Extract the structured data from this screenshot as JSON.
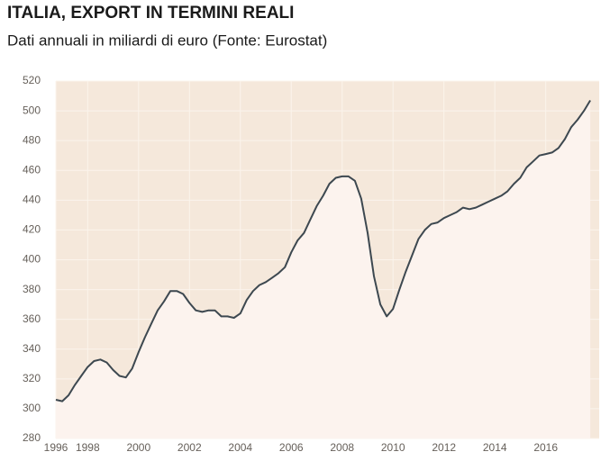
{
  "chart_data": {
    "type": "line",
    "title": "ITALIA, EXPORT IN TERMINI REALI",
    "subtitle": "Dati annuali in miliardi di euro (Fonte: Eurostat)",
    "x": [
      1996.75,
      1997,
      1997.25,
      1997.5,
      1997.75,
      1998,
      1998.25,
      1998.5,
      1998.75,
      1999,
      1999.25,
      1999.5,
      1999.75,
      2000,
      2000.25,
      2000.5,
      2000.75,
      2001,
      2001.25,
      2001.5,
      2001.75,
      2002,
      2002.25,
      2002.5,
      2002.75,
      2003,
      2003.25,
      2003.5,
      2003.75,
      2004,
      2004.25,
      2004.5,
      2004.75,
      2005,
      2005.25,
      2005.5,
      2005.75,
      2006,
      2006.25,
      2006.5,
      2006.75,
      2007,
      2007.25,
      2007.5,
      2007.75,
      2008,
      2008.25,
      2008.5,
      2008.75,
      2009,
      2009.25,
      2009.5,
      2009.75,
      2010,
      2010.25,
      2010.5,
      2010.75,
      2011,
      2011.25,
      2011.5,
      2011.75,
      2012,
      2012.25,
      2012.5,
      2012.75,
      2013,
      2013.25,
      2013.5,
      2013.75,
      2014,
      2014.25,
      2014.5,
      2014.75,
      2015,
      2015.25,
      2015.5,
      2015.75,
      2016,
      2016.25,
      2016.5,
      2016.75,
      2017,
      2017.25,
      2017.5,
      2017.75
    ],
    "series": [
      {
        "color": "#3d4850",
        "fill": "#fcf3ee",
        "values": [
          306,
          305,
          309,
          316,
          322,
          328,
          332,
          333,
          331,
          326,
          322,
          321,
          327,
          338,
          348,
          357,
          366,
          372,
          379,
          379,
          377,
          371,
          366,
          365,
          366,
          366,
          362,
          362,
          361,
          364,
          373,
          379,
          383,
          385,
          388,
          391,
          395,
          405,
          413,
          418,
          427,
          436,
          443,
          451,
          455,
          456,
          456,
          453,
          441,
          418,
          389,
          370,
          362,
          367,
          380,
          392,
          403,
          414,
          420,
          424,
          425,
          428,
          430,
          432,
          435,
          434,
          435,
          437,
          439,
          441,
          443,
          446,
          451,
          455,
          462,
          466,
          470,
          471,
          472,
          475,
          481,
          489,
          494,
          500,
          507
        ]
      }
    ],
    "xlim": [
      1996.75,
      2018.1
    ],
    "xticks": [
      {
        "value": 1996.75,
        "label": "1996"
      },
      1998,
      2000,
      2002,
      2004,
      2006,
      2008,
      2010,
      2012,
      2014,
      2016
    ],
    "ylim": [
      280,
      520
    ],
    "yticks": [
      280,
      300,
      320,
      340,
      360,
      380,
      400,
      420,
      440,
      460,
      480,
      500,
      520
    ],
    "grid": true,
    "background": "#f5e8db"
  }
}
